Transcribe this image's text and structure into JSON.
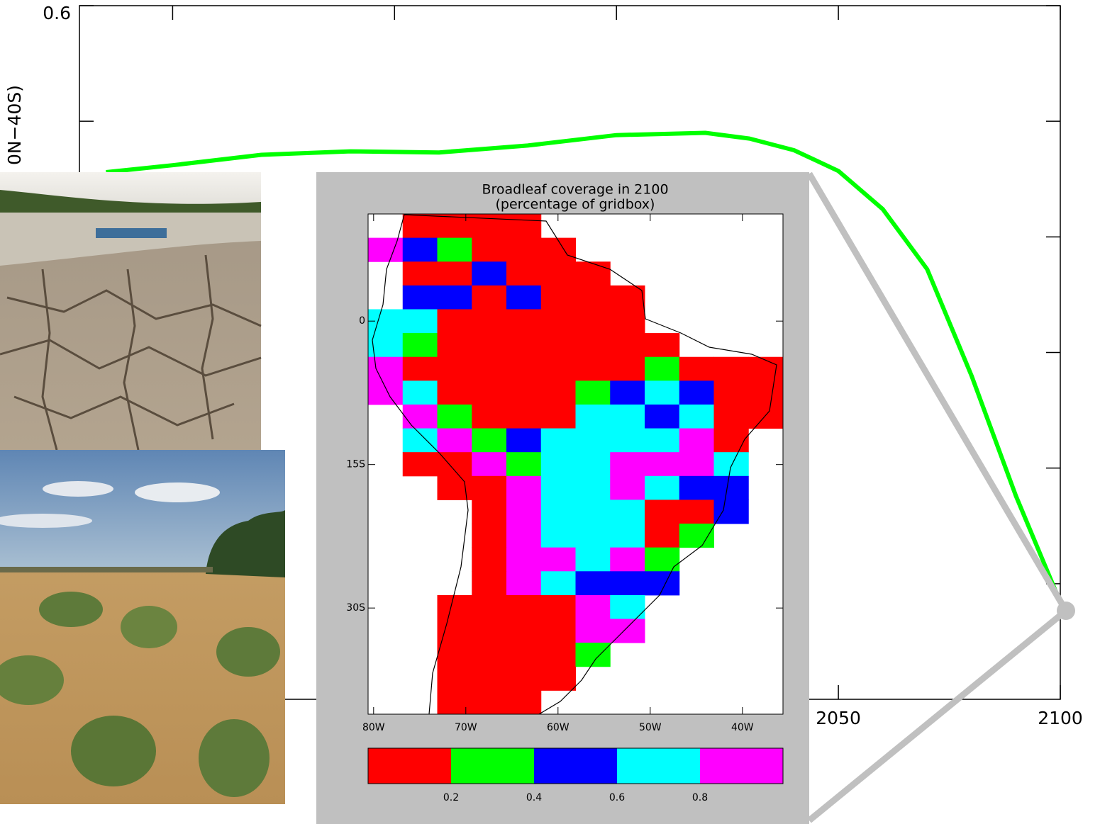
{
  "chart_data": [
    {
      "type": "line",
      "y_label": "0N−40S)",
      "x": [
        1885,
        1900,
        1920,
        1940,
        1960,
        1980,
        2000,
        2020,
        2030,
        2040,
        2050,
        2060,
        2070,
        2080,
        2090,
        2100
      ],
      "series": [
        {
          "color": "#00ff00",
          "values": [
            0.456,
            0.462,
            0.471,
            0.474,
            0.473,
            0.479,
            0.488,
            0.49,
            0.485,
            0.475,
            0.457,
            0.424,
            0.372,
            0.28,
            0.176,
            0.084
          ]
        }
      ],
      "xlim": [
        1879,
        2100
      ],
      "xticks": [
        1900,
        1950,
        2000,
        2050,
        2100
      ],
      "ylim": [
        0,
        0.6
      ],
      "yticks": [
        0.6
      ],
      "minor_yticks": [
        0.1,
        0.2,
        0.3,
        0.4,
        0.5
      ]
    },
    {
      "type": "heatmap",
      "title": "Broadleaf coverage in 2100",
      "subtitle": "(percentage of gridbox)",
      "xlim": [
        -80.6,
        -35.6
      ],
      "ylim": [
        -41.1,
        11.2
      ],
      "xticks": [
        {
          "value": -80,
          "label": "80W"
        },
        {
          "value": -70,
          "label": "70W"
        },
        {
          "value": -60,
          "label": "60W"
        },
        {
          "value": -50,
          "label": "50W"
        },
        {
          "value": -40,
          "label": "40W"
        }
      ],
      "yticks": [
        {
          "value": 0,
          "label": "0"
        },
        {
          "value": -15,
          "label": "15S"
        },
        {
          "value": -30,
          "label": "30S"
        }
      ],
      "cells": [
        [
          null,
          0.1,
          0.1,
          0.1,
          0.1,
          null,
          null,
          null,
          null,
          null,
          null,
          null
        ],
        [
          0.9,
          0.5,
          0.3,
          0.1,
          0.1,
          0.1,
          null,
          null,
          null,
          null,
          null,
          null
        ],
        [
          null,
          0.1,
          0.1,
          0.5,
          0.1,
          0.1,
          0.1,
          null,
          null,
          null,
          null,
          null
        ],
        [
          null,
          0.5,
          0.5,
          0.1,
          0.5,
          0.1,
          0.1,
          0.1,
          null,
          null,
          null,
          null
        ],
        [
          0.7,
          0.7,
          0.1,
          0.1,
          0.1,
          0.1,
          0.1,
          0.1,
          null,
          null,
          null,
          null
        ],
        [
          0.7,
          0.3,
          0.1,
          0.1,
          0.1,
          0.1,
          0.1,
          0.1,
          0.1,
          null,
          null,
          null
        ],
        [
          0.9,
          0.1,
          0.1,
          0.1,
          0.1,
          0.1,
          0.1,
          0.1,
          0.3,
          0.1,
          0.1,
          0.1
        ],
        [
          0.9,
          0.7,
          0.1,
          0.1,
          0.1,
          0.1,
          0.3,
          0.5,
          0.7,
          0.5,
          0.1,
          0.1
        ],
        [
          null,
          0.9,
          0.3,
          0.1,
          0.1,
          0.1,
          0.7,
          0.7,
          0.5,
          0.7,
          0.1,
          0.1
        ],
        [
          null,
          0.7,
          0.9,
          0.3,
          0.5,
          0.7,
          0.7,
          0.7,
          0.7,
          0.9,
          0.1,
          null
        ],
        [
          null,
          0.1,
          0.1,
          0.9,
          0.3,
          0.7,
          0.7,
          0.9,
          0.9,
          0.9,
          0.7,
          null
        ],
        [
          null,
          null,
          0.1,
          0.1,
          0.9,
          0.7,
          0.7,
          0.9,
          0.7,
          0.5,
          0.5,
          null
        ],
        [
          null,
          null,
          null,
          0.1,
          0.9,
          0.7,
          0.7,
          0.7,
          0.1,
          0.1,
          0.5,
          null
        ],
        [
          null,
          null,
          null,
          0.1,
          0.9,
          0.7,
          0.7,
          0.7,
          0.1,
          0.3,
          null,
          null
        ],
        [
          null,
          null,
          null,
          0.1,
          0.9,
          0.9,
          0.7,
          0.9,
          0.3,
          null,
          null,
          null
        ],
        [
          null,
          null,
          null,
          0.1,
          0.9,
          0.7,
          0.5,
          0.5,
          0.5,
          null,
          null,
          null
        ],
        [
          null,
          null,
          0.1,
          0.1,
          0.1,
          0.1,
          0.9,
          0.7,
          null,
          null,
          null,
          null
        ],
        [
          null,
          null,
          0.1,
          0.1,
          0.1,
          0.1,
          0.9,
          0.9,
          null,
          null,
          null,
          null
        ],
        [
          null,
          null,
          0.1,
          0.1,
          0.1,
          0.1,
          0.3,
          null,
          null,
          null,
          null,
          null
        ],
        [
          null,
          null,
          0.1,
          0.1,
          0.1,
          0.1,
          null,
          null,
          null,
          null,
          null,
          null
        ],
        [
          null,
          null,
          0.1,
          0.1,
          0.1,
          null,
          null,
          null,
          null,
          null,
          null,
          null
        ]
      ],
      "colorbar": {
        "bounds": [
          0,
          0.2,
          0.4,
          0.6,
          0.8,
          1.0
        ],
        "ticks": [
          0.2,
          0.4,
          0.6,
          0.8
        ],
        "colors": [
          "#ff0000",
          "#00ff00",
          "#0000ff",
          "#00ffff",
          "#ff00ff"
        ]
      }
    }
  ]
}
